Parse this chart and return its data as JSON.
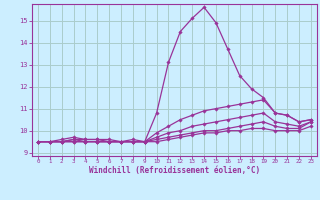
{
  "xlabel": "Windchill (Refroidissement éolien,°C)",
  "background_color": "#cceeff",
  "grid_color": "#aacccc",
  "line_color": "#993399",
  "axis_color": "#993399",
  "x_ticks": [
    0,
    1,
    2,
    3,
    4,
    5,
    6,
    7,
    8,
    9,
    10,
    11,
    12,
    13,
    14,
    15,
    16,
    17,
    18,
    19,
    20,
    21,
    22,
    23
  ],
  "ylim": [
    8.85,
    15.75
  ],
  "yticks": [
    9,
    10,
    11,
    12,
    13,
    14,
    15
  ],
  "series": [
    [
      9.5,
      9.5,
      9.6,
      9.7,
      9.6,
      9.6,
      9.6,
      9.5,
      9.6,
      9.5,
      10.8,
      13.1,
      14.5,
      15.1,
      15.6,
      14.9,
      13.7,
      12.5,
      11.9,
      11.5,
      10.8,
      10.7,
      10.4,
      10.5
    ],
    [
      9.5,
      9.5,
      9.5,
      9.6,
      9.6,
      9.6,
      9.5,
      9.5,
      9.5,
      9.5,
      9.9,
      10.2,
      10.5,
      10.7,
      10.9,
      11.0,
      11.1,
      11.2,
      11.3,
      11.4,
      10.8,
      10.7,
      10.4,
      10.5
    ],
    [
      9.5,
      9.5,
      9.5,
      9.6,
      9.5,
      9.5,
      9.5,
      9.5,
      9.5,
      9.5,
      9.7,
      9.9,
      10.0,
      10.2,
      10.3,
      10.4,
      10.5,
      10.6,
      10.7,
      10.8,
      10.4,
      10.3,
      10.2,
      10.4
    ],
    [
      9.5,
      9.5,
      9.5,
      9.5,
      9.5,
      9.5,
      9.5,
      9.5,
      9.5,
      9.5,
      9.6,
      9.7,
      9.8,
      9.9,
      10.0,
      10.0,
      10.1,
      10.2,
      10.3,
      10.4,
      10.2,
      10.1,
      10.1,
      10.4
    ],
    [
      9.5,
      9.5,
      9.5,
      9.5,
      9.5,
      9.5,
      9.5,
      9.5,
      9.5,
      9.5,
      9.5,
      9.6,
      9.7,
      9.8,
      9.9,
      9.9,
      10.0,
      10.0,
      10.1,
      10.1,
      10.0,
      10.0,
      10.0,
      10.2
    ]
  ]
}
